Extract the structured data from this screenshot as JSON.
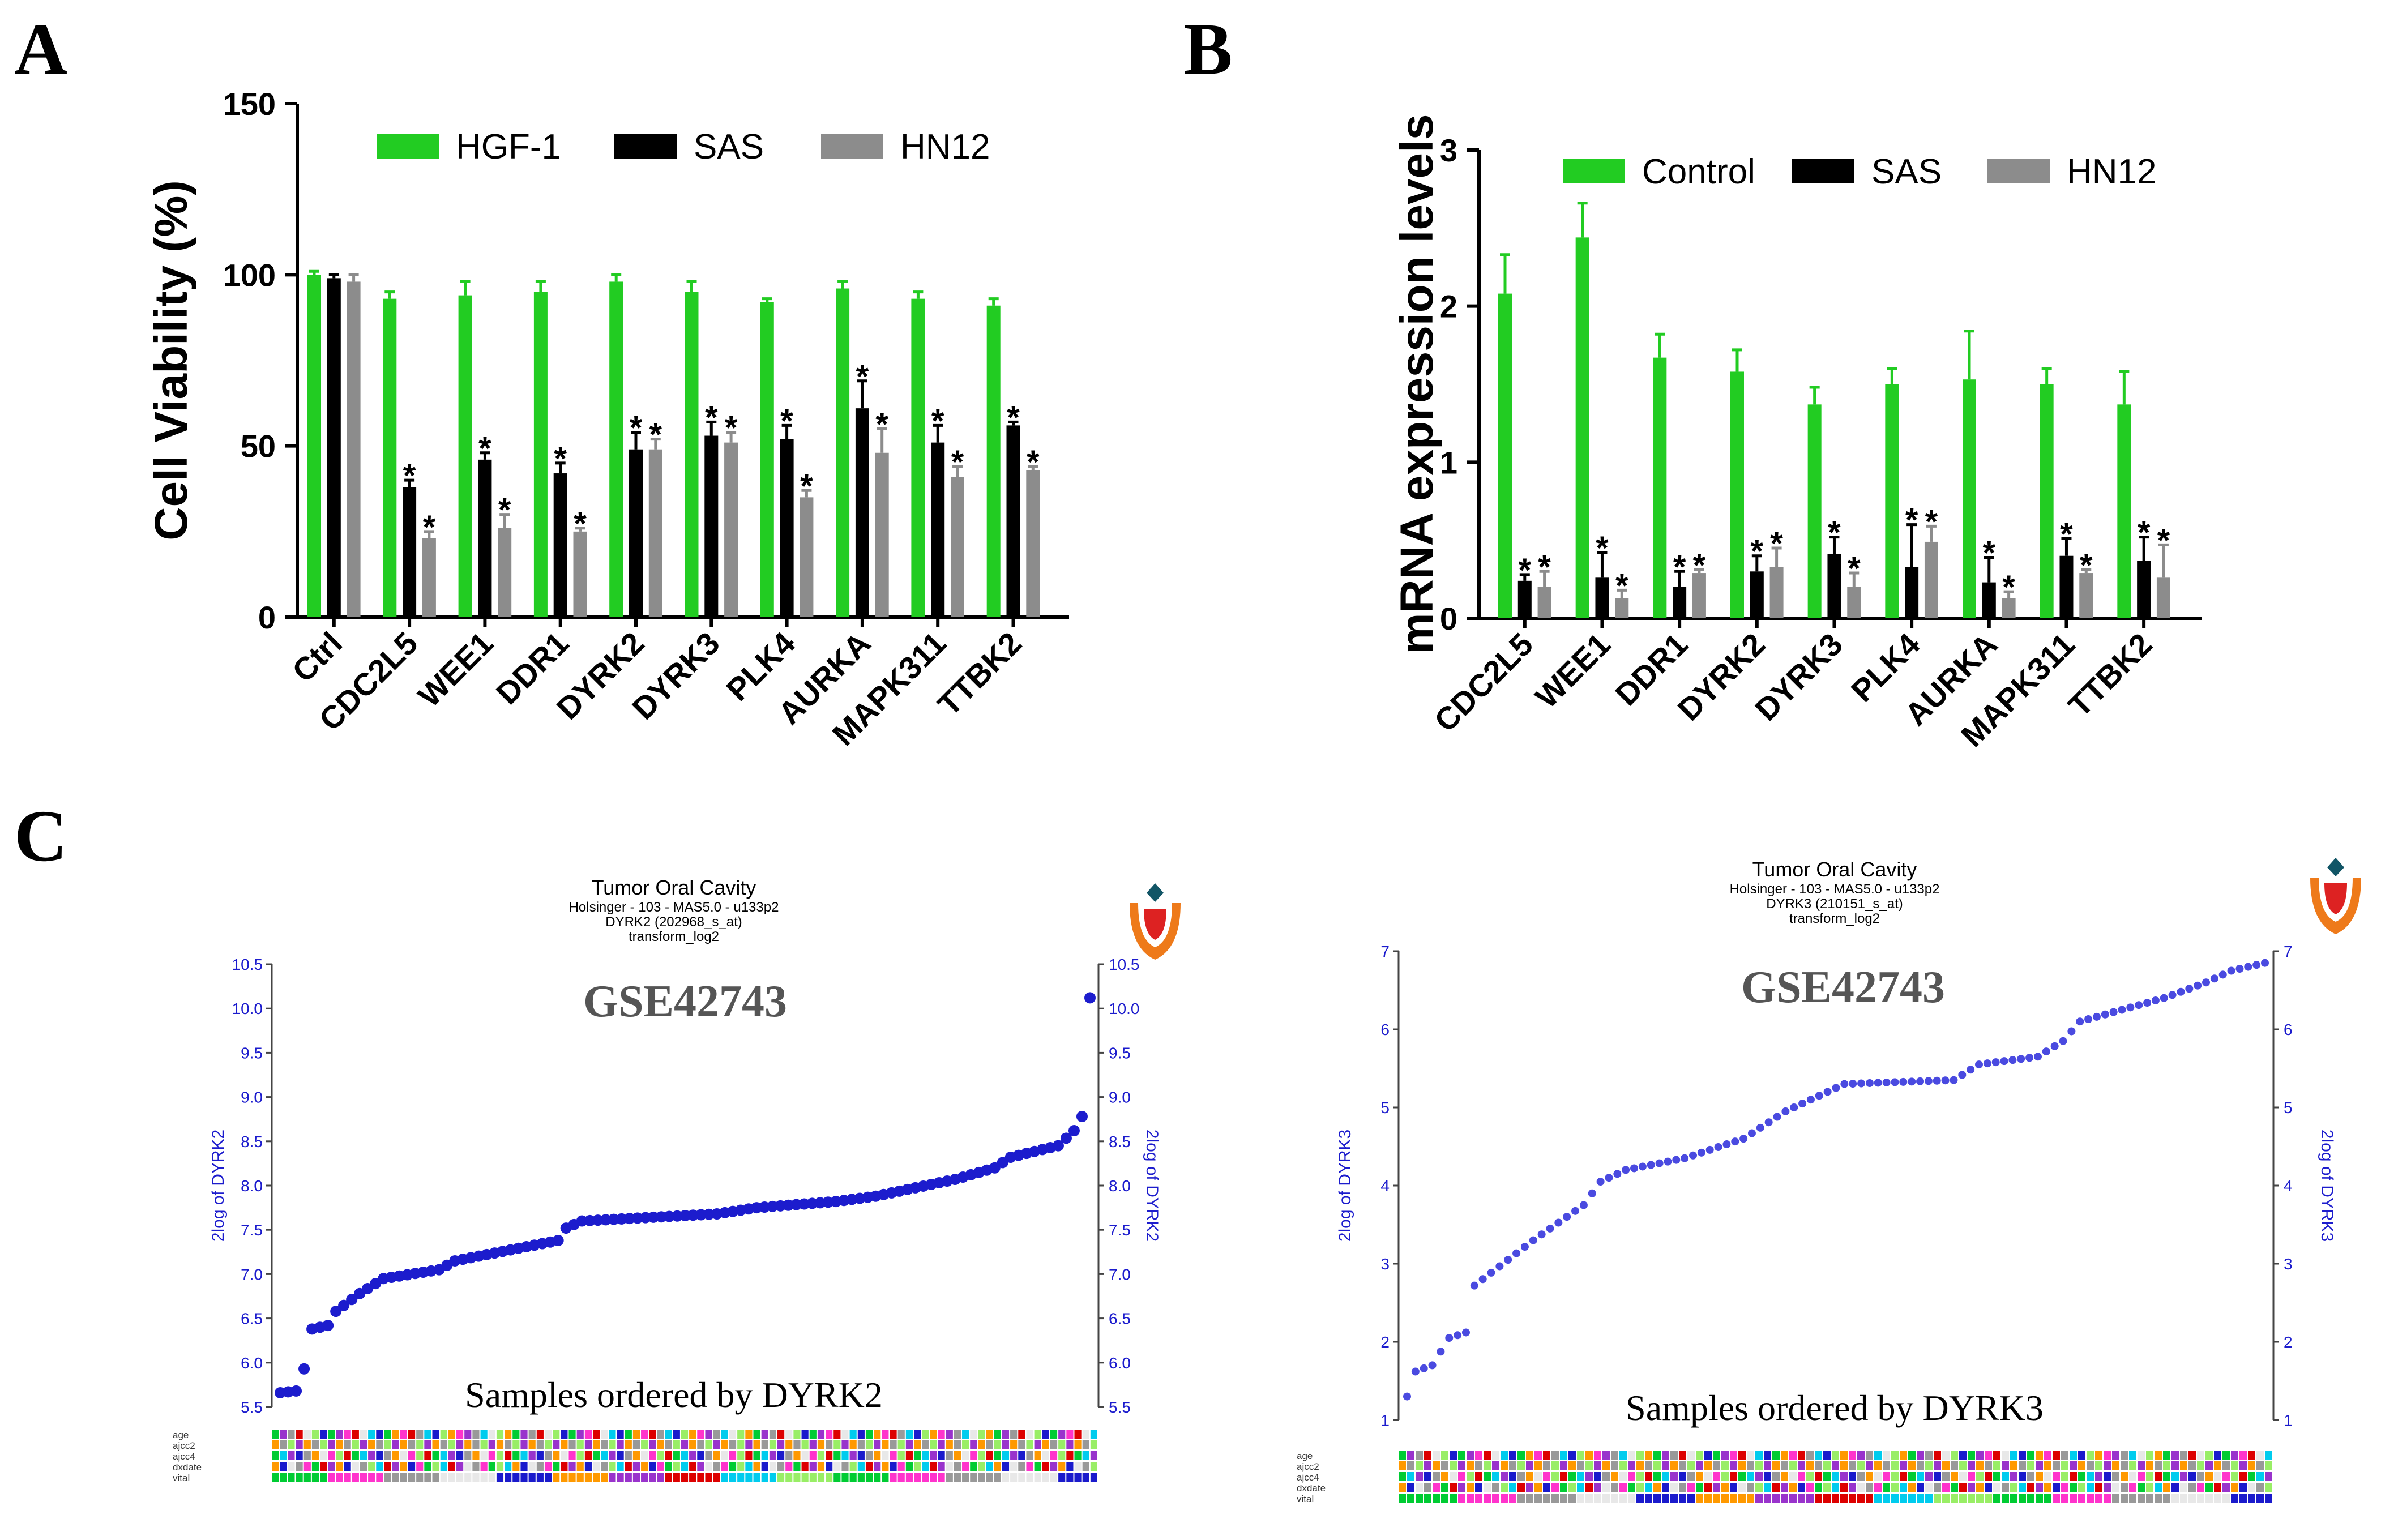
{
  "panels": {
    "A": "A",
    "B": "B",
    "C": "C"
  },
  "chart_data": [
    {
      "id": "A",
      "type": "bar",
      "ylabel": "Cell Viability (%)",
      "ylim": [
        0,
        150
      ],
      "yticks": [
        0,
        50,
        100,
        150
      ],
      "categories": [
        "Ctrl",
        "CDC2L5",
        "WEE1",
        "DDR1",
        "DYRK2",
        "DYRK3",
        "PLK4",
        "AURKA",
        "MAPK311",
        "TTBK2"
      ],
      "series": [
        {
          "name": "HGF-1",
          "color": "#22cc22",
          "values": [
            100,
            93,
            94,
            95,
            98,
            95,
            92,
            96,
            93,
            91
          ],
          "errors": [
            1,
            2,
            4,
            3,
            2,
            3,
            1,
            2,
            2,
            2
          ],
          "significant": [
            false,
            false,
            false,
            false,
            false,
            false,
            false,
            false,
            false,
            false
          ]
        },
        {
          "name": "SAS",
          "color": "#000000",
          "values": [
            99,
            38,
            46,
            42,
            49,
            53,
            52,
            61,
            51,
            56
          ],
          "errors": [
            1,
            2,
            2,
            3,
            5,
            4,
            4,
            8,
            5,
            1
          ],
          "significant": [
            false,
            true,
            true,
            true,
            true,
            true,
            true,
            true,
            true,
            true
          ]
        },
        {
          "name": "HN12",
          "color": "#8c8c8c",
          "values": [
            98,
            23,
            26,
            25,
            49,
            51,
            35,
            48,
            41,
            43
          ],
          "errors": [
            2,
            2,
            4,
            1,
            3,
            3,
            2,
            7,
            3,
            1
          ],
          "significant": [
            false,
            true,
            true,
            true,
            true,
            true,
            true,
            true,
            true,
            true
          ]
        }
      ],
      "significance_mark": "*"
    },
    {
      "id": "B",
      "type": "bar",
      "ylabel": "mRNA expression levels",
      "ylim": [
        0,
        3
      ],
      "yticks": [
        0,
        1,
        2,
        3
      ],
      "categories": [
        "CDC2L5",
        "WEE1",
        "DDR1",
        "DYRK2",
        "DYRK3",
        "PLK4",
        "AURKA",
        "MAPK311",
        "TTBK2"
      ],
      "series": [
        {
          "name": "Control",
          "color": "#22cc22",
          "values": [
            2.08,
            2.44,
            1.67,
            1.58,
            1.37,
            1.5,
            1.53,
            1.5,
            1.37
          ],
          "errors": [
            0.25,
            0.22,
            0.15,
            0.14,
            0.11,
            0.1,
            0.31,
            0.1,
            0.21
          ],
          "significant": [
            false,
            false,
            false,
            false,
            false,
            false,
            false,
            false,
            false
          ]
        },
        {
          "name": "SAS",
          "color": "#000000",
          "values": [
            0.24,
            0.26,
            0.2,
            0.3,
            0.41,
            0.33,
            0.23,
            0.4,
            0.37
          ],
          "errors": [
            0.04,
            0.16,
            0.1,
            0.1,
            0.11,
            0.27,
            0.16,
            0.11,
            0.15
          ],
          "significant": [
            true,
            true,
            true,
            true,
            true,
            true,
            true,
            true,
            true
          ]
        },
        {
          "name": "HN12",
          "color": "#8c8c8c",
          "values": [
            0.2,
            0.13,
            0.29,
            0.33,
            0.2,
            0.49,
            0.13,
            0.29,
            0.26
          ],
          "errors": [
            0.1,
            0.05,
            0.02,
            0.12,
            0.09,
            0.1,
            0.04,
            0.02,
            0.21
          ],
          "significant": [
            true,
            true,
            true,
            true,
            true,
            true,
            true,
            true,
            true
          ]
        }
      ],
      "significance_mark": "*"
    },
    {
      "id": "C1",
      "type": "scatter",
      "title": "Tumor Oral Cavity",
      "subtitle_lines": [
        "Holsinger - 103 - MAS5.0 - u133p2",
        "DYRK2 (202968_s_at)",
        "transform_log2"
      ],
      "dataset_label": "GSE42743",
      "xlabel": "Samples ordered by DYRK2",
      "ylabel_left": "2log of DYRK2",
      "ylabel_right": "2log of DYRK2",
      "ylim": [
        5.5,
        10.5
      ],
      "yticks": [
        "5.5",
        "6.0",
        "6.5",
        "7.0",
        "7.5",
        "8.0",
        "8.5",
        "9.0",
        "9.5",
        "10.0",
        "10.5"
      ],
      "color": "#1c1ccd",
      "n": 103,
      "keypoints": [
        [
          0,
          5.66
        ],
        [
          2,
          5.68
        ],
        [
          3,
          5.93
        ],
        [
          4,
          6.38
        ],
        [
          6,
          6.42
        ],
        [
          7,
          6.58
        ],
        [
          10,
          6.78
        ],
        [
          13,
          6.95
        ],
        [
          20,
          7.05
        ],
        [
          22,
          7.15
        ],
        [
          35,
          7.38
        ],
        [
          36,
          7.52
        ],
        [
          38,
          7.6
        ],
        [
          55,
          7.68
        ],
        [
          60,
          7.75
        ],
        [
          70,
          7.82
        ],
        [
          75,
          7.88
        ],
        [
          85,
          8.07
        ],
        [
          90,
          8.2
        ],
        [
          92,
          8.32
        ],
        [
          98,
          8.45
        ],
        [
          100,
          8.62
        ],
        [
          101,
          8.78
        ],
        [
          102,
          10.12
        ]
      ],
      "clinical_tracks": [
        "age",
        "ajcc2",
        "ajcc4",
        "dxdate",
        "vital"
      ]
    },
    {
      "id": "C2",
      "type": "scatter",
      "title": "Tumor Oral Cavity",
      "subtitle_lines": [
        "Holsinger - 103 - MAS5.0 - u133p2",
        "DYRK3 (210151_s_at)",
        "transform_log2"
      ],
      "dataset_label": "GSE42743",
      "xlabel": "Samples ordered by DYRK3",
      "ylabel_left": "2log of DYRK3",
      "ylabel_right": "2log of DYRK3",
      "ylim": [
        1,
        7
      ],
      "yticks": [
        "1",
        "2",
        "3",
        "4",
        "5",
        "6",
        "7"
      ],
      "color": "#4a4ae0",
      "n": 103,
      "keypoints": [
        [
          0,
          1.3
        ],
        [
          1,
          1.62
        ],
        [
          3,
          1.7
        ],
        [
          5,
          2.05
        ],
        [
          7,
          2.12
        ],
        [
          8,
          2.72
        ],
        [
          12,
          3.05
        ],
        [
          15,
          3.3
        ],
        [
          19,
          3.6
        ],
        [
          21,
          3.75
        ],
        [
          23,
          4.05
        ],
        [
          26,
          4.2
        ],
        [
          33,
          4.35
        ],
        [
          40,
          4.6
        ],
        [
          45,
          4.95
        ],
        [
          50,
          5.2
        ],
        [
          52,
          5.3
        ],
        [
          65,
          5.35
        ],
        [
          68,
          5.55
        ],
        [
          75,
          5.65
        ],
        [
          78,
          5.85
        ],
        [
          80,
          6.1
        ],
        [
          85,
          6.25
        ],
        [
          90,
          6.4
        ],
        [
          95,
          6.6
        ],
        [
          98,
          6.75
        ],
        [
          102,
          6.85
        ]
      ],
      "clinical_tracks": [
        "age",
        "ajcc2",
        "ajcc4",
        "dxdate",
        "vital"
      ]
    }
  ],
  "track_colors": [
    "#00cc33",
    "#dd0000",
    "#1a1acc",
    "#ff33cc",
    "#00ccee",
    "#ff9900",
    "#999999",
    "#99ee66",
    "#9933cc",
    "#e8e8e8"
  ],
  "logo": "tulip-logo"
}
